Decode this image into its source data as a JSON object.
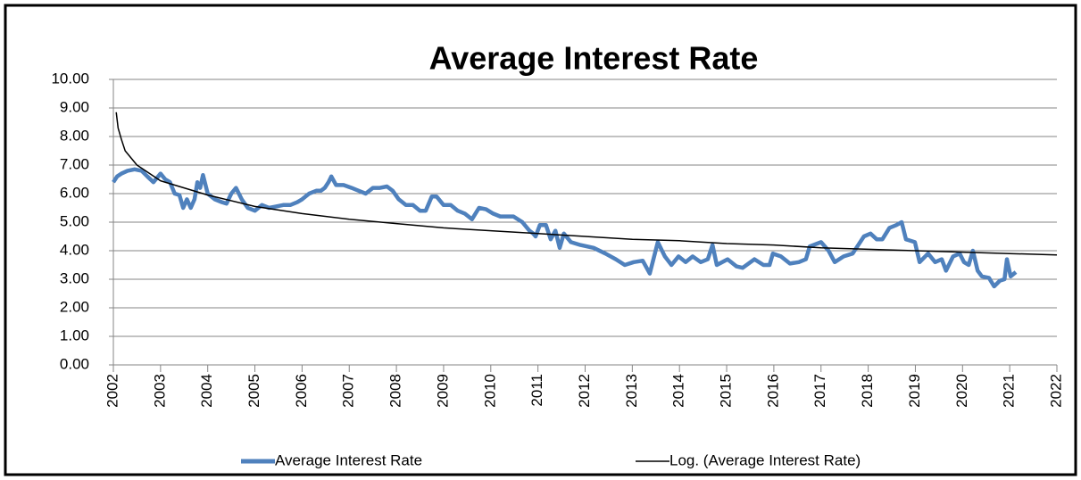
{
  "chart_data": {
    "type": "line",
    "title": "Average Interest Rate",
    "xlim": [
      2002,
      2022
    ],
    "xticks": [
      2002,
      2003,
      2004,
      2005,
      2006,
      2007,
      2008,
      2009,
      2010,
      2011,
      2012,
      2013,
      2014,
      2015,
      2016,
      2017,
      2018,
      2019,
      2020,
      2021,
      2022
    ],
    "ylim": [
      0,
      10
    ],
    "yticks": [
      {
        "value": 0,
        "label": "0.00"
      },
      {
        "value": 1,
        "label": "1.00"
      },
      {
        "value": 2,
        "label": "2.00"
      },
      {
        "value": 3,
        "label": "3.00"
      },
      {
        "value": 4,
        "label": "4.00"
      },
      {
        "value": 5,
        "label": "5.00"
      },
      {
        "value": 6,
        "label": "6.00"
      },
      {
        "value": 7,
        "label": "7.00"
      },
      {
        "value": 8,
        "label": "8.00"
      },
      {
        "value": 9,
        "label": "9.00"
      },
      {
        "value": 10,
        "label": "10.00"
      }
    ],
    "grid": true,
    "legend": "bottom",
    "series": [
      {
        "name": "Average Interest Rate",
        "color": "#4f81bd",
        "x": [
          2002.0,
          2002.08,
          2002.17,
          2002.3,
          2002.45,
          2002.6,
          2002.72,
          2002.85,
          2003.0,
          2003.1,
          2003.2,
          2003.3,
          2003.4,
          2003.48,
          2003.56,
          2003.64,
          2003.72,
          2003.78,
          2003.84,
          2003.9,
          2004.0,
          2004.15,
          2004.3,
          2004.4,
          2004.5,
          2004.6,
          2004.72,
          2004.85,
          2005.0,
          2005.15,
          2005.3,
          2005.45,
          2005.6,
          2005.75,
          2005.9,
          2006.0,
          2006.15,
          2006.3,
          2006.4,
          2006.48,
          2006.56,
          2006.62,
          2006.72,
          2006.88,
          2007.05,
          2007.2,
          2007.35,
          2007.5,
          2007.65,
          2007.8,
          2007.92,
          2008.05,
          2008.2,
          2008.35,
          2008.5,
          2008.62,
          2008.75,
          2008.85,
          2009.0,
          2009.15,
          2009.3,
          2009.45,
          2009.6,
          2009.75,
          2009.9,
          2010.05,
          2010.2,
          2010.35,
          2010.48,
          2010.67,
          2010.82,
          2010.9,
          2010.95,
          2011.04,
          2011.17,
          2011.27,
          2011.37,
          2011.46,
          2011.55,
          2011.7,
          2011.9,
          2012.18,
          2012.43,
          2012.65,
          2012.84,
          2013.03,
          2013.22,
          2013.37,
          2013.54,
          2013.69,
          2013.83,
          2013.98,
          2014.13,
          2014.28,
          2014.45,
          2014.6,
          2014.7,
          2014.79,
          2015.02,
          2015.21,
          2015.34,
          2015.59,
          2015.78,
          2015.91,
          2015.98,
          2016.15,
          2016.34,
          2016.53,
          2016.68,
          2016.76,
          2017.0,
          2017.16,
          2017.29,
          2017.48,
          2017.67,
          2017.91,
          2018.05,
          2018.18,
          2018.3,
          2018.45,
          2018.6,
          2018.71,
          2018.8,
          2018.99,
          2019.09,
          2019.27,
          2019.42,
          2019.56,
          2019.65,
          2019.8,
          2019.94,
          2020.03,
          2020.13,
          2020.22,
          2020.32,
          2020.41,
          2020.56,
          2020.67,
          2020.79,
          2020.89,
          2020.94,
          2021.02,
          2021.13
        ],
        "values": [
          6.4,
          6.6,
          6.7,
          6.8,
          6.85,
          6.8,
          6.6,
          6.4,
          6.7,
          6.5,
          6.4,
          6.0,
          5.95,
          5.5,
          5.8,
          5.5,
          5.8,
          6.4,
          6.2,
          6.65,
          6.0,
          5.8,
          5.7,
          5.65,
          6.0,
          6.2,
          5.8,
          5.5,
          5.4,
          5.6,
          5.5,
          5.55,
          5.6,
          5.6,
          5.7,
          5.8,
          6.0,
          6.1,
          6.1,
          6.2,
          6.4,
          6.6,
          6.3,
          6.3,
          6.2,
          6.1,
          6.0,
          6.2,
          6.2,
          6.25,
          6.1,
          5.8,
          5.6,
          5.6,
          5.4,
          5.4,
          5.9,
          5.9,
          5.6,
          5.6,
          5.4,
          5.3,
          5.1,
          5.5,
          5.45,
          5.3,
          5.2,
          5.2,
          5.2,
          5.0,
          4.7,
          4.6,
          4.5,
          4.9,
          4.9,
          4.4,
          4.7,
          4.1,
          4.6,
          4.3,
          4.2,
          4.1,
          3.9,
          3.7,
          3.5,
          3.6,
          3.65,
          3.2,
          4.3,
          3.8,
          3.5,
          3.8,
          3.6,
          3.8,
          3.6,
          3.7,
          4.2,
          3.5,
          3.7,
          3.45,
          3.4,
          3.7,
          3.5,
          3.5,
          3.9,
          3.8,
          3.55,
          3.6,
          3.7,
          4.15,
          4.3,
          4.0,
          3.6,
          3.8,
          3.9,
          4.5,
          4.6,
          4.4,
          4.4,
          4.8,
          4.9,
          5.0,
          4.4,
          4.3,
          3.6,
          3.9,
          3.6,
          3.7,
          3.3,
          3.8,
          3.9,
          3.6,
          3.5,
          4.0,
          3.3,
          3.1,
          3.05,
          2.75,
          2.95,
          3.0,
          3.7,
          3.1,
          3.25
        ]
      },
      {
        "name": "Log. (Average Interest Rate)",
        "color": "#000000",
        "x": [
          2002.06,
          2002.1,
          2002.17,
          2002.25,
          2002.5,
          2003,
          2004,
          2005,
          2006,
          2007,
          2008,
          2009,
          2010,
          2011,
          2012,
          2013,
          2014,
          2015,
          2016,
          2017,
          2018,
          2019,
          2020,
          2021,
          2022
        ],
        "values": [
          8.85,
          8.3,
          7.9,
          7.5,
          7.0,
          6.45,
          5.95,
          5.55,
          5.3,
          5.1,
          4.95,
          4.8,
          4.7,
          4.6,
          4.5,
          4.4,
          4.35,
          4.25,
          4.2,
          4.1,
          4.05,
          4.0,
          3.95,
          3.9,
          3.85
        ]
      }
    ]
  }
}
